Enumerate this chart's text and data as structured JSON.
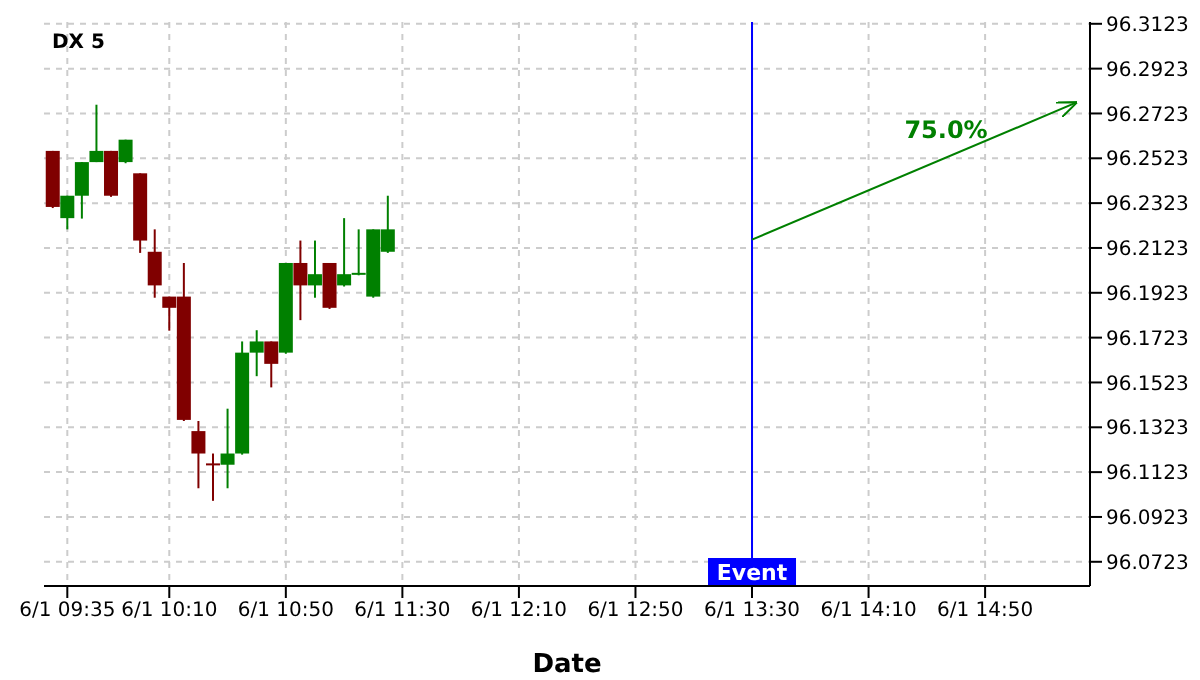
{
  "chart_data": {
    "type": "candlestick",
    "title": "DX 5",
    "xlabel": "Date",
    "x": [
      "--06-01T09:30",
      "--06-01T09:35",
      "--06-01T09:40",
      "--06-01T09:45",
      "--06-01T09:50",
      "--06-01T09:55",
      "--06-01T10:00",
      "--06-01T10:05",
      "--06-01T10:10",
      "--06-01T10:15",
      "--06-01T10:20",
      "--06-01T10:25",
      "--06-01T10:30",
      "--06-01T10:35",
      "--06-01T10:40",
      "--06-01T10:45",
      "--06-01T10:50",
      "--06-01T10:55",
      "--06-01T11:00",
      "--06-01T11:05",
      "--06-01T11:10",
      "--06-01T11:15",
      "--06-01T11:20",
      "--06-01T11:25"
    ],
    "series": [
      {
        "ohlc": [
          [
            96.2556,
            96.2556,
            96.2301,
            96.2306
          ],
          [
            96.2256,
            96.2356,
            96.2206,
            96.2356
          ],
          [
            96.2356,
            96.2506,
            96.2254,
            96.2506
          ],
          [
            96.2506,
            96.2762,
            96.2506,
            96.2556
          ],
          [
            96.2556,
            96.2556,
            96.2351,
            96.2356
          ],
          [
            96.2506,
            96.2606,
            96.2501,
            96.2606
          ],
          [
            96.2456,
            96.2456,
            96.2101,
            96.2156
          ],
          [
            96.2106,
            96.2206,
            96.1901,
            96.1956
          ],
          [
            96.1906,
            96.1906,
            96.1754,
            96.1856
          ],
          [
            96.1906,
            96.2056,
            96.1351,
            96.1356
          ],
          [
            96.1306,
            96.1351,
            96.1051,
            96.1206
          ],
          [
            96.1162,
            96.1206,
            96.0995,
            96.1162
          ],
          [
            96.1156,
            96.1406,
            96.1051,
            96.1206
          ],
          [
            96.1206,
            96.1706,
            96.1201,
            96.1656
          ],
          [
            96.1656,
            96.1756,
            96.1551,
            96.1706
          ],
          [
            96.1706,
            96.1706,
            96.1501,
            96.1606
          ],
          [
            96.1656,
            96.2056,
            96.1651,
            96.2056
          ],
          [
            96.2056,
            96.2156,
            96.1801,
            96.1956
          ],
          [
            96.1956,
            96.2156,
            96.1901,
            96.2006
          ],
          [
            96.2056,
            96.2056,
            96.1851,
            96.1856
          ],
          [
            96.1956,
            96.2256,
            96.1951,
            96.2006
          ],
          [
            96.2012,
            96.2206,
            96.2001,
            96.2012
          ],
          [
            96.1906,
            96.2206,
            96.1901,
            96.2206
          ],
          [
            96.2106,
            96.2356,
            96.2101,
            96.2206
          ]
        ],
        "colors": [
          "#800000",
          "#008000",
          "#008000",
          "#008000",
          "#800000",
          "#008000",
          "#800000",
          "#800000",
          "#800000",
          "#800000",
          "#800000",
          "#800000",
          "#008000",
          "#008000",
          "#008000",
          "#800000",
          "#008000",
          "#800000",
          "#008000",
          "#800000",
          "#008000",
          "#008000",
          "#008000",
          "#008000"
        ]
      },
      {
        "type": "line",
        "x": [
          "--06-01T13:30",
          "--06-01T15:21"
        ],
        "values": [
          96.216,
          96.277
        ],
        "color": "#008000",
        "marker": "none"
      }
    ],
    "annotations": [
      "75.0%"
    ],
    "ref_lines": [
      {
        "axis": "x",
        "value": "--06-01T13:30",
        "label": "Event",
        "color": "#0000ff"
      }
    ],
    "xlim": [
      "--06-01T09:27",
      "--06-01T15:26"
    ],
    "xticks": [
      {
        "value": "--06-01T09:35",
        "label": "6/1 09:35"
      },
      {
        "value": "--06-01T10:10",
        "label": "6/1 10:10"
      },
      {
        "value": "--06-01T10:50",
        "label": "6/1 10:50"
      },
      {
        "value": "--06-01T11:30",
        "label": "6/1 11:30"
      },
      {
        "value": "--06-01T12:10",
        "label": "6/1 12:10"
      },
      {
        "value": "--06-01T12:50",
        "label": "6/1 12:50"
      },
      {
        "value": "--06-01T13:30",
        "label": "6/1 13:30"
      },
      {
        "value": "--06-01T14:10",
        "label": "6/1 14:10"
      },
      {
        "value": "--06-01T14:50",
        "label": "6/1 14:50"
      }
    ],
    "ylim": [
      96.0615,
      96.3131
    ],
    "yticks": [
      96.0723,
      96.0923,
      96.1123,
      96.1323,
      96.1523,
      96.1723,
      96.1923,
      96.2123,
      96.2323,
      96.2523,
      96.2723,
      96.2923,
      96.3123
    ],
    "grid": true
  }
}
